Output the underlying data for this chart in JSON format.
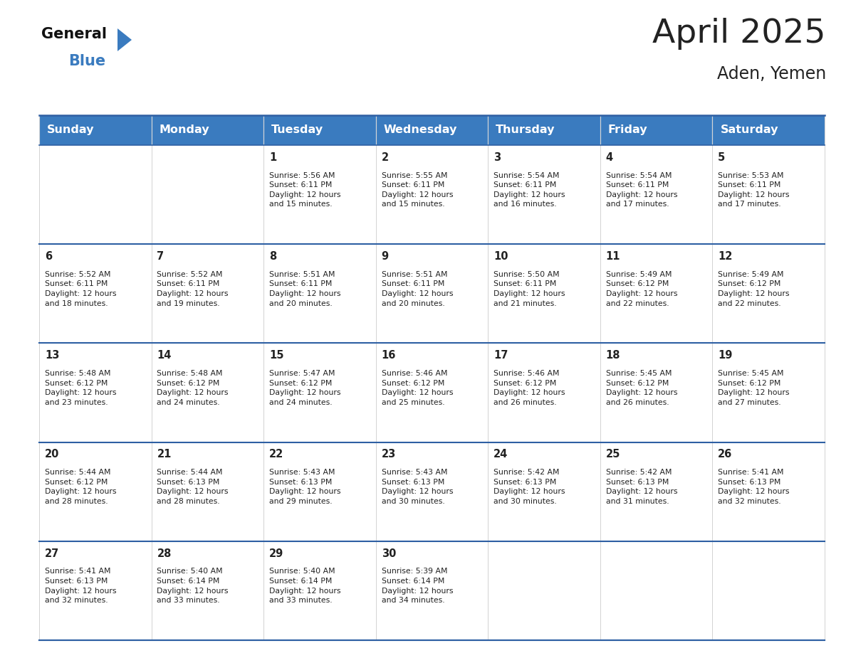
{
  "title": "April 2025",
  "subtitle": "Aden, Yemen",
  "header_color": "#3a7bbf",
  "header_text_color": "#ffffff",
  "cell_bg_color": "#ffffff",
  "cell_alt_bg_color": "#f0f4f8",
  "border_color": "#2e5fa3",
  "grid_color": "#cccccc",
  "text_color": "#222222",
  "days_of_week": [
    "Sunday",
    "Monday",
    "Tuesday",
    "Wednesday",
    "Thursday",
    "Friday",
    "Saturday"
  ],
  "calendar": [
    [
      {
        "day": "",
        "info": ""
      },
      {
        "day": "",
        "info": ""
      },
      {
        "day": "1",
        "info": "Sunrise: 5:56 AM\nSunset: 6:11 PM\nDaylight: 12 hours\nand 15 minutes."
      },
      {
        "day": "2",
        "info": "Sunrise: 5:55 AM\nSunset: 6:11 PM\nDaylight: 12 hours\nand 15 minutes."
      },
      {
        "day": "3",
        "info": "Sunrise: 5:54 AM\nSunset: 6:11 PM\nDaylight: 12 hours\nand 16 minutes."
      },
      {
        "day": "4",
        "info": "Sunrise: 5:54 AM\nSunset: 6:11 PM\nDaylight: 12 hours\nand 17 minutes."
      },
      {
        "day": "5",
        "info": "Sunrise: 5:53 AM\nSunset: 6:11 PM\nDaylight: 12 hours\nand 17 minutes."
      }
    ],
    [
      {
        "day": "6",
        "info": "Sunrise: 5:52 AM\nSunset: 6:11 PM\nDaylight: 12 hours\nand 18 minutes."
      },
      {
        "day": "7",
        "info": "Sunrise: 5:52 AM\nSunset: 6:11 PM\nDaylight: 12 hours\nand 19 minutes."
      },
      {
        "day": "8",
        "info": "Sunrise: 5:51 AM\nSunset: 6:11 PM\nDaylight: 12 hours\nand 20 minutes."
      },
      {
        "day": "9",
        "info": "Sunrise: 5:51 AM\nSunset: 6:11 PM\nDaylight: 12 hours\nand 20 minutes."
      },
      {
        "day": "10",
        "info": "Sunrise: 5:50 AM\nSunset: 6:11 PM\nDaylight: 12 hours\nand 21 minutes."
      },
      {
        "day": "11",
        "info": "Sunrise: 5:49 AM\nSunset: 6:12 PM\nDaylight: 12 hours\nand 22 minutes."
      },
      {
        "day": "12",
        "info": "Sunrise: 5:49 AM\nSunset: 6:12 PM\nDaylight: 12 hours\nand 22 minutes."
      }
    ],
    [
      {
        "day": "13",
        "info": "Sunrise: 5:48 AM\nSunset: 6:12 PM\nDaylight: 12 hours\nand 23 minutes."
      },
      {
        "day": "14",
        "info": "Sunrise: 5:48 AM\nSunset: 6:12 PM\nDaylight: 12 hours\nand 24 minutes."
      },
      {
        "day": "15",
        "info": "Sunrise: 5:47 AM\nSunset: 6:12 PM\nDaylight: 12 hours\nand 24 minutes."
      },
      {
        "day": "16",
        "info": "Sunrise: 5:46 AM\nSunset: 6:12 PM\nDaylight: 12 hours\nand 25 minutes."
      },
      {
        "day": "17",
        "info": "Sunrise: 5:46 AM\nSunset: 6:12 PM\nDaylight: 12 hours\nand 26 minutes."
      },
      {
        "day": "18",
        "info": "Sunrise: 5:45 AM\nSunset: 6:12 PM\nDaylight: 12 hours\nand 26 minutes."
      },
      {
        "day": "19",
        "info": "Sunrise: 5:45 AM\nSunset: 6:12 PM\nDaylight: 12 hours\nand 27 minutes."
      }
    ],
    [
      {
        "day": "20",
        "info": "Sunrise: 5:44 AM\nSunset: 6:12 PM\nDaylight: 12 hours\nand 28 minutes."
      },
      {
        "day": "21",
        "info": "Sunrise: 5:44 AM\nSunset: 6:13 PM\nDaylight: 12 hours\nand 28 minutes."
      },
      {
        "day": "22",
        "info": "Sunrise: 5:43 AM\nSunset: 6:13 PM\nDaylight: 12 hours\nand 29 minutes."
      },
      {
        "day": "23",
        "info": "Sunrise: 5:43 AM\nSunset: 6:13 PM\nDaylight: 12 hours\nand 30 minutes."
      },
      {
        "day": "24",
        "info": "Sunrise: 5:42 AM\nSunset: 6:13 PM\nDaylight: 12 hours\nand 30 minutes."
      },
      {
        "day": "25",
        "info": "Sunrise: 5:42 AM\nSunset: 6:13 PM\nDaylight: 12 hours\nand 31 minutes."
      },
      {
        "day": "26",
        "info": "Sunrise: 5:41 AM\nSunset: 6:13 PM\nDaylight: 12 hours\nand 32 minutes."
      }
    ],
    [
      {
        "day": "27",
        "info": "Sunrise: 5:41 AM\nSunset: 6:13 PM\nDaylight: 12 hours\nand 32 minutes."
      },
      {
        "day": "28",
        "info": "Sunrise: 5:40 AM\nSunset: 6:14 PM\nDaylight: 12 hours\nand 33 minutes."
      },
      {
        "day": "29",
        "info": "Sunrise: 5:40 AM\nSunset: 6:14 PM\nDaylight: 12 hours\nand 33 minutes."
      },
      {
        "day": "30",
        "info": "Sunrise: 5:39 AM\nSunset: 6:14 PM\nDaylight: 12 hours\nand 34 minutes."
      },
      {
        "day": "",
        "info": ""
      },
      {
        "day": "",
        "info": ""
      },
      {
        "day": "",
        "info": ""
      }
    ]
  ],
  "logo_text_general": "General",
  "logo_text_blue": "Blue",
  "logo_color_general": "#111111",
  "logo_color_blue": "#3a7bbf",
  "logo_triangle_color": "#3a7bbf"
}
